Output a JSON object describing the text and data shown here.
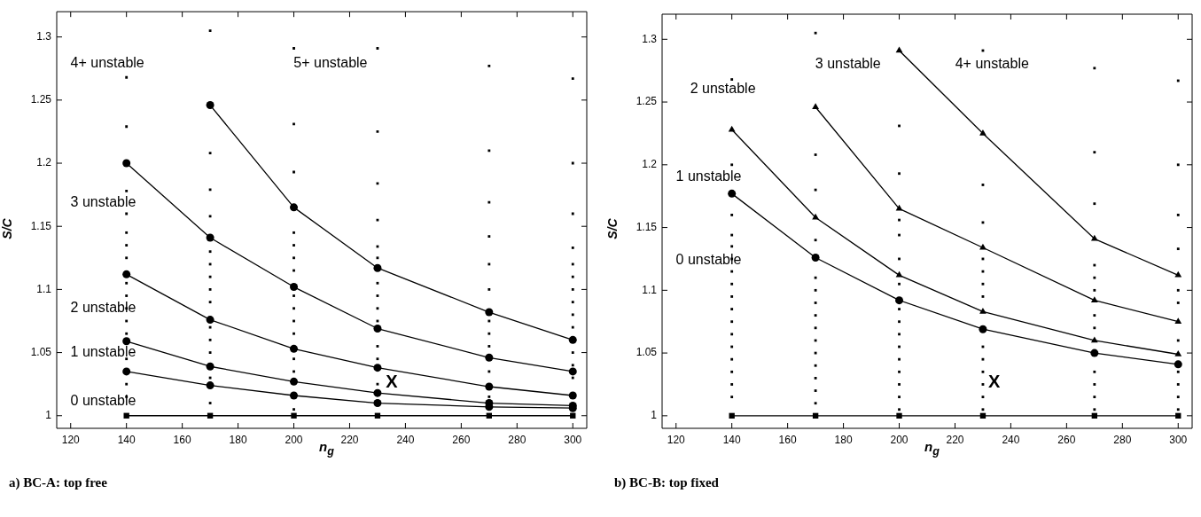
{
  "chart_data": [
    {
      "type": "line",
      "title": "a) BC-A: top free",
      "xlabel": "n$_{g}$",
      "ylabel": "S/C",
      "xlim": [
        115,
        305
      ],
      "ylim": [
        0.99,
        1.32
      ],
      "xticks": [
        120,
        140,
        160,
        180,
        200,
        220,
        240,
        260,
        280,
        300
      ],
      "yticks": [
        1,
        1.05,
        1.1,
        1.15,
        1.2,
        1.25,
        1.3
      ],
      "legend": false,
      "grid": false,
      "annotations": [
        "4+ unstable",
        "5+ unstable",
        "3 unstable",
        "2 unstable",
        "1 unstable",
        "0 unstable",
        {
          "text": "X",
          "x": 232,
          "y": 1.017
        }
      ],
      "series": [
        {
          "type": "scatter",
          "marker": "square",
          "color": "#000000",
          "x": [
            140,
            140,
            140,
            140,
            140,
            140,
            140,
            140,
            140,
            140,
            140,
            140,
            140,
            140,
            140,
            170,
            170,
            170,
            170,
            170,
            170,
            170,
            170,
            170,
            170,
            170,
            170,
            170,
            170,
            200,
            200,
            200,
            200,
            200,
            200,
            200,
            200,
            200,
            200,
            200,
            200,
            200,
            200,
            230,
            230,
            230,
            230,
            230,
            230,
            230,
            230,
            230,
            230,
            230,
            230,
            230,
            270,
            270,
            270,
            270,
            270,
            270,
            270,
            270,
            270,
            270,
            270,
            300,
            300,
            300,
            300,
            300,
            300,
            300,
            300,
            300,
            300,
            300,
            300,
            300
          ],
          "values": [
            1.268,
            1.229,
            1.178,
            1.16,
            1.145,
            1.135,
            1.125,
            1.105,
            1.095,
            1.085,
            1.075,
            1.065,
            1.045,
            1.025,
            1.015,
            1.305,
            1.208,
            1.179,
            1.158,
            1.13,
            1.12,
            1.11,
            1.1,
            1.09,
            1.07,
            1.06,
            1.05,
            1.03,
            1.01,
            1.291,
            1.231,
            1.193,
            1.145,
            1.135,
            1.125,
            1.115,
            1.095,
            1.085,
            1.075,
            1.065,
            1.045,
            1.035,
            1.005,
            1.291,
            1.225,
            1.184,
            1.155,
            1.134,
            1.125,
            1.105,
            1.095,
            1.085,
            1.075,
            1.055,
            1.045,
            1.025,
            1.277,
            1.21,
            1.169,
            1.142,
            1.12,
            1.1,
            1.075,
            1.065,
            1.055,
            1.035,
            1.015,
            1.267,
            1.2,
            1.16,
            1.133,
            1.12,
            1.11,
            1.1,
            1.09,
            1.08,
            1.07,
            1.05,
            1.04,
            1.03
          ]
        },
        {
          "type": "line",
          "marker": "square",
          "color": "#000000",
          "x": [
            140,
            170,
            200,
            230,
            270,
            300
          ],
          "values": [
            1,
            1,
            1,
            1,
            1,
            1
          ]
        },
        {
          "type": "line",
          "marker": "circle",
          "color": "#000000",
          "x": [
            140,
            170,
            200,
            230,
            270,
            300
          ],
          "values": [
            1.035,
            1.024,
            1.016,
            1.01,
            1.007,
            1.006
          ]
        },
        {
          "type": "line",
          "marker": "circle",
          "color": "#000000",
          "x": [
            140,
            170,
            200,
            230,
            270,
            300
          ],
          "values": [
            1.059,
            1.039,
            1.027,
            1.018,
            1.01,
            1.008
          ]
        },
        {
          "type": "line",
          "marker": "circle",
          "color": "#000000",
          "x": [
            140,
            170,
            200,
            230,
            270,
            300
          ],
          "values": [
            1.112,
            1.076,
            1.053,
            1.038,
            1.023,
            1.016
          ]
        },
        {
          "type": "line",
          "marker": "circle",
          "color": "#000000",
          "x": [
            140,
            170,
            200,
            230,
            270,
            300
          ],
          "values": [
            1.2,
            1.141,
            1.102,
            1.069,
            1.046,
            1.035
          ]
        },
        {
          "type": "line",
          "marker": "circle",
          "color": "#000000",
          "x": [
            170,
            200,
            230,
            270,
            300
          ],
          "values": [
            1.246,
            1.165,
            1.117,
            1.082,
            1.06
          ]
        }
      ]
    },
    {
      "type": "line",
      "title": "b) BC-B: top fixed",
      "xlabel": "n$_{g}$",
      "ylabel": "S/C",
      "xlim": [
        115,
        305
      ],
      "ylim": [
        0.99,
        1.32
      ],
      "xticks": [
        120,
        140,
        160,
        180,
        200,
        220,
        240,
        260,
        280,
        300
      ],
      "yticks": [
        1,
        1.05,
        1.1,
        1.15,
        1.2,
        1.25,
        1.3
      ],
      "legend": false,
      "grid": false,
      "annotations": [
        "2 unstable",
        "3 unstable",
        "4+ unstable",
        "1 unstable",
        "0 unstable",
        {
          "text": "X",
          "x": 231,
          "y": 1.017
        }
      ],
      "series": [
        {
          "type": "scatter",
          "marker": "square",
          "color": "#000000",
          "x": [
            140,
            140,
            140,
            140,
            140,
            140,
            140,
            140,
            140,
            140,
            140,
            140,
            140,
            140,
            140,
            140,
            140,
            170,
            170,
            170,
            170,
            170,
            170,
            170,
            170,
            170,
            170,
            170,
            170,
            170,
            170,
            170,
            200,
            200,
            200,
            200,
            200,
            200,
            200,
            200,
            200,
            200,
            200,
            200,
            200,
            200,
            200,
            230,
            230,
            230,
            230,
            230,
            230,
            230,
            230,
            230,
            230,
            230,
            230,
            230,
            270,
            270,
            270,
            270,
            270,
            270,
            270,
            270,
            270,
            270,
            270,
            270,
            300,
            300,
            300,
            300,
            300,
            300,
            300,
            300,
            300,
            300,
            300
          ],
          "values": [
            1.268,
            1.2,
            1.16,
            1.144,
            1.135,
            1.125,
            1.115,
            1.105,
            1.095,
            1.085,
            1.075,
            1.065,
            1.055,
            1.045,
            1.035,
            1.025,
            1.015,
            1.305,
            1.208,
            1.18,
            1.14,
            1.11,
            1.1,
            1.09,
            1.08,
            1.07,
            1.06,
            1.05,
            1.04,
            1.03,
            1.02,
            1.01,
            1.231,
            1.193,
            1.156,
            1.144,
            1.125,
            1.105,
            1.085,
            1.075,
            1.065,
            1.055,
            1.045,
            1.035,
            1.025,
            1.015,
            1.005,
            1.291,
            1.184,
            1.154,
            1.125,
            1.115,
            1.105,
            1.095,
            1.055,
            1.045,
            1.035,
            1.025,
            1.015,
            1.005,
            1.277,
            1.21,
            1.169,
            1.12,
            1.11,
            1.1,
            1.08,
            1.07,
            1.035,
            1.025,
            1.015,
            1.005,
            1.267,
            1.2,
            1.16,
            1.133,
            1.1,
            1.09,
            1.06,
            1.035,
            1.025,
            1.015,
            1.005
          ]
        },
        {
          "type": "line",
          "marker": "square",
          "color": "#000000",
          "x": [
            140,
            170,
            200,
            230,
            270,
            300
          ],
          "values": [
            1,
            1,
            1,
            1,
            1,
            1
          ]
        },
        {
          "type": "line",
          "marker": "circle",
          "color": "#000000",
          "x": [
            140,
            170,
            200,
            230,
            270,
            300
          ],
          "values": [
            1.177,
            1.126,
            1.092,
            1.069,
            1.05,
            1.041
          ]
        },
        {
          "type": "line",
          "marker": "triangle",
          "color": "#000000",
          "x": [
            140,
            170,
            200,
            230,
            270,
            300
          ],
          "values": [
            1.228,
            1.158,
            1.112,
            1.083,
            1.06,
            1.049
          ]
        },
        {
          "type": "line",
          "marker": "triangle",
          "color": "#000000",
          "x": [
            170,
            200,
            230,
            270,
            300
          ],
          "values": [
            1.246,
            1.165,
            1.134,
            1.092,
            1.075
          ]
        },
        {
          "type": "line",
          "marker": "triangle",
          "color": "#000000",
          "x": [
            200,
            230,
            270,
            300
          ],
          "values": [
            1.291,
            1.225,
            1.141,
            1.112
          ]
        }
      ]
    }
  ]
}
